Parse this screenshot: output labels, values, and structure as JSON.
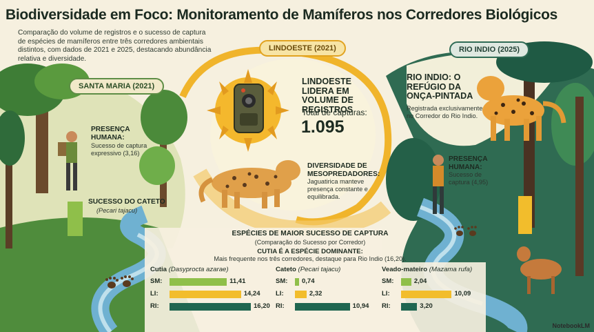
{
  "title": "Biodiversidade em Foco: Monitoramento de Mamíferos nos Corredores Biológicos",
  "subtitle": "Comparação do volume de registros e o sucesso de captura de espécies de mamíferos entre três corredores ambientais distintos, com dados de 2021 e 2025, destacando abundância relativa e diversidade.",
  "corridors": {
    "santa_maria": {
      "label": "SANTA MARIA (2021)",
      "presence_title": "PRESENÇA HUMANA:",
      "presence_text": "Sucesso de captura expressivo (3,16)",
      "cateto_title": "SUCESSO DO CATETO",
      "cateto_species": "(Pecari tajacu)"
    },
    "lindoeste": {
      "label": "LINDOESTE (2021)",
      "lead_title": "LINDOESTE LIDERA EM VOLUME DE REGISTROS",
      "total_label": "Total de capturas:",
      "total_value": "1.095",
      "meso_title": "DIVERSIDADE DE MESOPREDADORES:",
      "meso_text": "Jaguatirica manteve presença constante e equilibrada."
    },
    "rio_indio": {
      "label": "RIO INDIO (2025)",
      "refuge_title": "RIO INDIO: O REFÚGIO DA ONÇA-PINTADA",
      "refuge_text": "Registrada exclusivamente no Corredor do Rio Indio.",
      "presence_title": "PRESENÇA HUMANA:",
      "presence_text": "Sucesso de captura (4,95)"
    }
  },
  "chart_header": {
    "title": "ESPÉCIES DE MAIOR SUCESSO DE CAPTURA",
    "subtitle": "(Comparação do Sucesso por Corredor)",
    "highlight_title": "CUTIA É A ESPÉCIE DOMINANTE:",
    "highlight_text": "Mais frequente nos três corredores, destaque para Rio Indio (16,20)."
  },
  "chart_data": {
    "type": "bar",
    "orientation": "horizontal",
    "title": "ESPÉCIES DE MAIOR SUCESSO DE CAPTURA",
    "subtitle": "(Comparação do Sucesso por Corredor)",
    "categories": [
      "SM:",
      "LI:",
      "RI:"
    ],
    "panels": [
      {
        "species": "Cutia",
        "scientific": "(Dasyprocta azarae)",
        "values": [
          11.41,
          14.24,
          16.2
        ],
        "labels": [
          "11,41",
          "14,24",
          "16,20"
        ]
      },
      {
        "species": "Cateto",
        "scientific": "(Pecari tajacu)",
        "values": [
          0.74,
          2.32,
          10.94
        ],
        "labels": [
          "0,74",
          "2,32",
          "10,94"
        ]
      },
      {
        "species": "Veado-mateiro",
        "scientific": "(Mazama rufa)",
        "values": [
          2.04,
          10.09,
          3.2
        ],
        "labels": [
          "2,04",
          "10,09",
          "3,20"
        ]
      }
    ],
    "xlim": [
      0,
      16.2
    ],
    "colors": {
      "SM:": "#8fbf4a",
      "LI:": "#f2bd2c",
      "RI:": "#1f6650"
    }
  },
  "colors": {
    "background": "#f6f0df",
    "forest_green": "#2f6b3a",
    "gold": "#e8a823",
    "teal": "#1f5f52",
    "river": "#5fa7c8"
  },
  "icons": [
    "camera-trap-icon",
    "paw-print-icon",
    "jaguar-illustration",
    "ocelot-illustration",
    "deer-illustration",
    "researcher-illustration"
  ],
  "brand": "NotebookLM"
}
